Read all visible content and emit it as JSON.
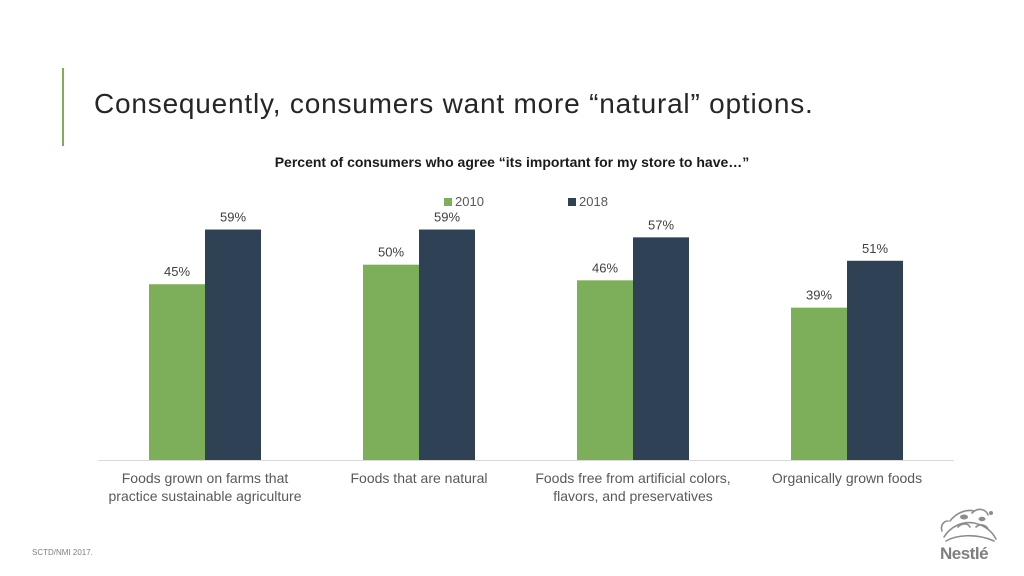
{
  "slide": {
    "title": "Consequently, consumers want more “natural” options.",
    "footer": "SCTD/NMI 2017.",
    "logo_text": "Nestlé"
  },
  "colors": {
    "series_2010": "#7daf5a",
    "series_2018": "#2f4255",
    "accent": "#7daf5a",
    "axis": "#d9d9d9"
  },
  "chart_data": {
    "type": "bar",
    "title": "Percent of consumers who agree “its important for my store to have…”",
    "categories": [
      [
        "Foods grown on farms that",
        "practice sustainable agriculture"
      ],
      [
        "Foods that are natural"
      ],
      [
        "Foods free from artificial colors,",
        "flavors, and preservatives"
      ],
      [
        "Organically grown foods"
      ]
    ],
    "series": [
      {
        "name": "2010",
        "values": [
          45,
          50,
          46,
          39
        ],
        "labels": [
          "45%",
          "50%",
          "46%",
          "39%"
        ]
      },
      {
        "name": "2018",
        "values": [
          59,
          59,
          57,
          51
        ],
        "labels": [
          "59%",
          "59%",
          "57%",
          "51%"
        ]
      }
    ],
    "ylim": [
      0,
      64
    ],
    "grid": false,
    "legend": "top-center",
    "xlabel": "",
    "ylabel": ""
  }
}
